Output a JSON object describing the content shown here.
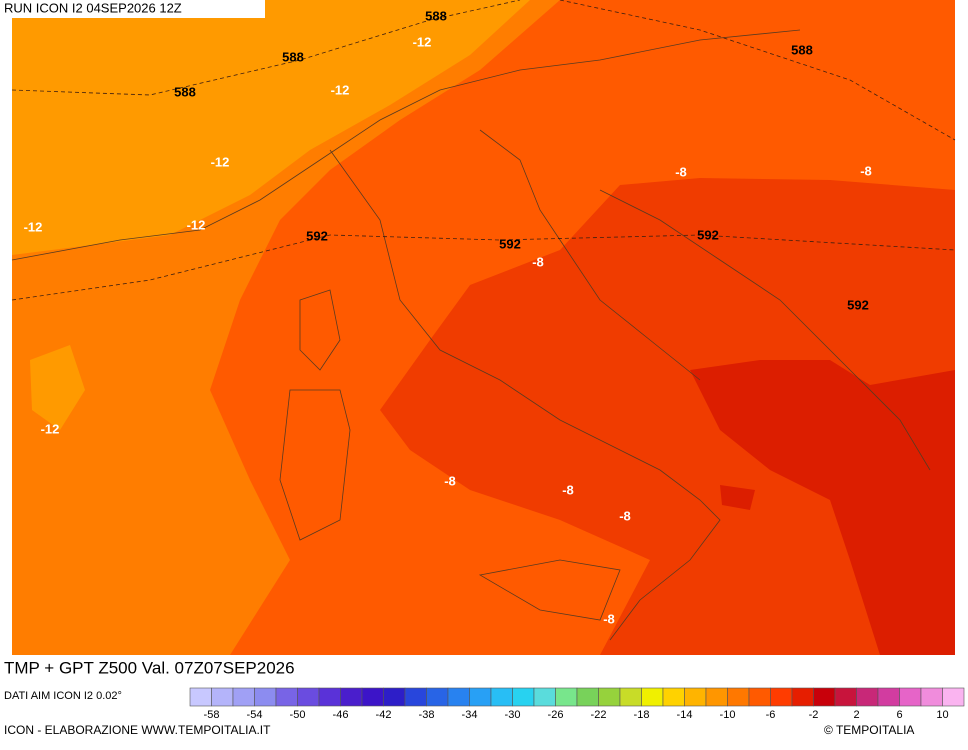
{
  "header": {
    "title": "RUN ICON I2 04SEP2026 12Z"
  },
  "map": {
    "labels": [
      588,
      -12,
      588,
      -12,
      588,
      588,
      -12,
      -12,
      -12,
      592,
      592,
      -8,
      -8,
      -8,
      592,
      592,
      -12,
      -8,
      -8,
      -8,
      -8
    ]
  },
  "footer": {
    "product": "TMP + GPT Z500 Val. 07Z07SEP2026",
    "source": "DATI AIM ICON I2 0.02°",
    "credit": "ICON - ELABORAZIONE WWW.TEMPOITALIA.IT",
    "copyright": "© TEMPOITALIA"
  },
  "colorbar": {
    "colors": [
      "#c8c8ff",
      "#b4b4fa",
      "#a0a0f5",
      "#8c8cf0",
      "#7864e6",
      "#6a4ce0",
      "#5a32d8",
      "#4a1ecc",
      "#3c14c8",
      "#2d1ec8",
      "#2846dc",
      "#2864e6",
      "#2882f0",
      "#28a0f5",
      "#28bef5",
      "#28d2f0",
      "#5adcdc",
      "#78e68c",
      "#78d25a",
      "#96d23c",
      "#c8dc28",
      "#f0f000",
      "#ffd200",
      "#ffb400",
      "#ff9600",
      "#ff7800",
      "#ff5a00",
      "#ff3c00",
      "#e61e00",
      "#c8000a",
      "#c8143c",
      "#c82878",
      "#d23ca0",
      "#e664c8",
      "#f08cdc",
      "#fab4f0"
    ],
    "labels": [
      -58,
      -54,
      -50,
      -46,
      -42,
      -38,
      -34,
      -30,
      -26,
      -22,
      -18,
      -14,
      -10,
      -6,
      -2,
      2,
      6,
      10
    ]
  }
}
